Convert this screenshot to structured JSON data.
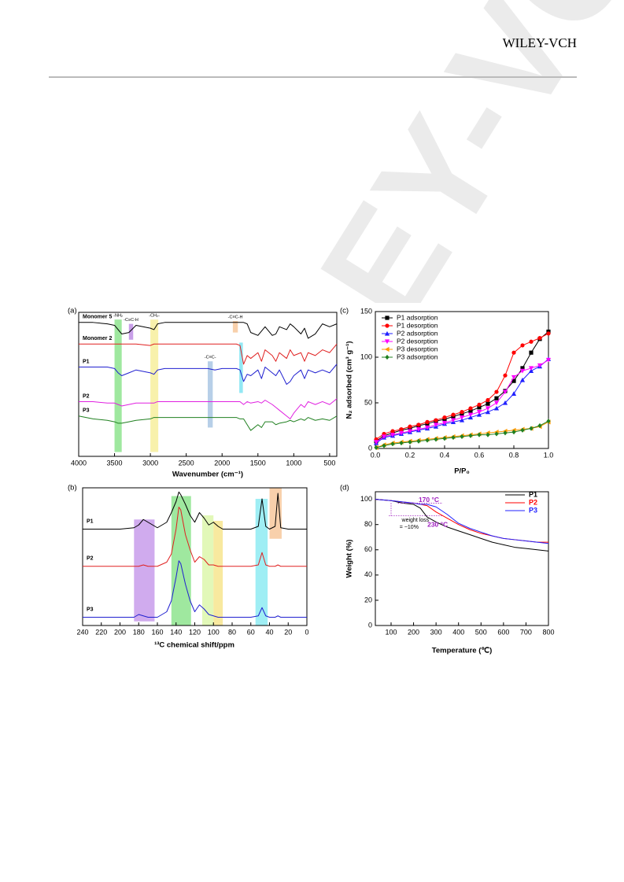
{
  "header": {
    "publisher": "WILEY-VCH"
  },
  "watermark": "WILEY-VCH",
  "chart_data": [
    {
      "type": "line",
      "panel": "(a)",
      "x_label": "Wavenumber (cm⁻¹)",
      "legend": "inline",
      "x": [
        4000,
        3800,
        3600,
        3500,
        3450,
        3400,
        3300,
        3200,
        3000,
        2950,
        2900,
        2800,
        2500,
        2200,
        2100,
        2000,
        1800,
        1750,
        1700,
        1650,
        1600,
        1500,
        1450,
        1400,
        1300,
        1250,
        1200,
        1100,
        1050,
        1000,
        900,
        850,
        800,
        700,
        600,
        500,
        400
      ],
      "xlim": [
        4000,
        400
      ],
      "ylim": [
        0,
        100
      ],
      "xticks": [
        4000,
        3500,
        3000,
        2500,
        2000,
        1500,
        1000,
        500
      ],
      "bands": [
        {
          "x0": 3500,
          "x1": 3400,
          "y0": 3,
          "y1": 95,
          "color": "#7fe07f",
          "label": "-NH₂"
        },
        {
          "x0": 3300,
          "x1": 3240,
          "y0": 81,
          "y1": 92,
          "color": "#b57fe0",
          "label": "-C≡C-H"
        },
        {
          "x0": 3000,
          "x1": 2890,
          "y0": 3,
          "y1": 95,
          "color": "#f5ec8f",
          "label": "-CH₂-"
        },
        {
          "x0": 1850,
          "x1": 1780,
          "y0": 86,
          "y1": 94,
          "color": "#f5c08f",
          "label": "-C≡C-H"
        },
        {
          "x0": 2200,
          "x1": 2130,
          "y0": 20,
          "y1": 66,
          "color": "#9fbfe0",
          "label": "-C≡C-"
        },
        {
          "x0": 1760,
          "x1": 1710,
          "y0": 44,
          "y1": 79,
          "color": "#6fe0f0"
        }
      ],
      "series": [
        {
          "name": "Monomer 5",
          "color": "#000000",
          "values": [
            93,
            93,
            92,
            91,
            88,
            85,
            86,
            91,
            89,
            88,
            92,
            93,
            93,
            93,
            93,
            93,
            93,
            93,
            93,
            92,
            86,
            84,
            87,
            90,
            84,
            85,
            90,
            88,
            92,
            90,
            85,
            89,
            82,
            85,
            92,
            90,
            92
          ]
        },
        {
          "name": "Monomer 2",
          "color": "#e02020",
          "values": [
            78,
            78,
            78,
            78,
            78,
            78,
            78,
            78,
            77,
            78,
            78,
            78,
            78,
            78,
            78,
            78,
            78,
            77,
            64,
            70,
            68,
            72,
            66,
            74,
            70,
            66,
            72,
            68,
            74,
            70,
            72,
            66,
            72,
            70,
            74,
            72,
            78
          ]
        },
        {
          "name": "P1",
          "color": "#2020d0",
          "values": [
            62,
            62,
            62,
            61,
            58,
            56,
            58,
            60,
            58,
            57,
            60,
            61,
            61,
            61,
            60,
            61,
            61,
            60,
            52,
            57,
            56,
            60,
            54,
            62,
            58,
            56,
            60,
            50,
            52,
            56,
            60,
            54,
            60,
            58,
            60,
            58,
            64
          ]
        },
        {
          "name": "P2",
          "color": "#e020e0",
          "values": [
            38,
            38,
            37,
            37,
            36,
            35,
            36,
            37,
            37,
            37,
            38,
            38,
            38,
            38,
            38,
            38,
            38,
            38,
            36,
            38,
            37,
            38,
            37,
            39,
            36,
            34,
            32,
            28,
            26,
            30,
            36,
            34,
            38,
            36,
            38,
            36,
            40
          ]
        },
        {
          "name": "P3",
          "color": "#208020",
          "values": [
            28,
            26,
            25,
            24,
            23,
            23,
            24,
            25,
            26,
            27,
            27,
            27,
            27,
            27,
            27,
            27,
            27,
            26,
            26,
            22,
            18,
            22,
            20,
            24,
            24,
            22,
            23,
            24,
            25,
            24,
            26,
            25,
            27,
            25,
            26,
            25,
            28
          ]
        }
      ]
    },
    {
      "type": "line",
      "panel": "(b)",
      "x_label": "¹³C chemical shift/ppm",
      "legend": "inline",
      "x": [
        240,
        220,
        200,
        185,
        180,
        175,
        170,
        160,
        150,
        145,
        140,
        137,
        135,
        130,
        125,
        120,
        115,
        110,
        105,
        100,
        95,
        90,
        80,
        60,
        52,
        48,
        44,
        40,
        34,
        31,
        28,
        20,
        0
      ],
      "xlim": [
        240,
        0
      ],
      "ylim": [
        0,
        100
      ],
      "xticks": [
        240,
        220,
        200,
        180,
        160,
        140,
        120,
        100,
        80,
        60,
        40,
        20,
        0
      ],
      "bands": [
        {
          "x0": 185,
          "x1": 163,
          "y0": 3,
          "y1": 77,
          "color": "#c08fe8"
        },
        {
          "x0": 145,
          "x1": 124,
          "y0": 0,
          "y1": 94,
          "color": "#7fe07f"
        },
        {
          "x0": 112,
          "x1": 100,
          "y0": 0,
          "y1": 80,
          "color": "#d8f5a0"
        },
        {
          "x0": 100,
          "x1": 90,
          "y0": 0,
          "y1": 76,
          "color": "#f5e27f"
        },
        {
          "x0": 55,
          "x1": 42,
          "y0": 0,
          "y1": 92,
          "color": "#7fe8f0"
        },
        {
          "x0": 40,
          "x1": 27,
          "y0": 63,
          "y1": 100,
          "color": "#f5c08f"
        }
      ],
      "series": [
        {
          "name": "P1",
          "color": "#000000",
          "values": [
            70,
            70,
            70,
            71,
            73,
            77,
            75,
            71,
            75,
            82,
            90,
            97,
            95,
            88,
            80,
            75,
            82,
            78,
            73,
            75,
            72,
            70,
            70,
            70,
            72,
            92,
            72,
            70,
            72,
            96,
            71,
            70,
            70
          ]
        },
        {
          "name": "P2",
          "color": "#e02020",
          "values": [
            43,
            43,
            43,
            43,
            43,
            44,
            43,
            43,
            46,
            52,
            70,
            86,
            84,
            66,
            55,
            46,
            50,
            48,
            44,
            44,
            43,
            43,
            43,
            43,
            44,
            53,
            44,
            43,
            43,
            44,
            43,
            43,
            43
          ]
        },
        {
          "name": "P3",
          "color": "#2020d0",
          "values": [
            6,
            6,
            6,
            6,
            8,
            7,
            6,
            6,
            10,
            18,
            35,
            47,
            45,
            30,
            18,
            10,
            15,
            12,
            8,
            7,
            6,
            6,
            6,
            6,
            7,
            13,
            7,
            6,
            6,
            7,
            6,
            6,
            6
          ]
        }
      ]
    },
    {
      "type": "line",
      "panel": "(c)",
      "x_label": "P/P₀",
      "y_label": "N₂ adsorbed (cm³ g⁻¹)",
      "legend": "upper left",
      "x": [
        0.005,
        0.05,
        0.1,
        0.15,
        0.2,
        0.25,
        0.3,
        0.35,
        0.4,
        0.45,
        0.5,
        0.55,
        0.6,
        0.65,
        0.7,
        0.75,
        0.8,
        0.85,
        0.9,
        0.95,
        1.0
      ],
      "xlim": [
        0,
        1
      ],
      "ylim": [
        0,
        150
      ],
      "xticks": [
        {
          "value": 0,
          "label": "0.0"
        },
        0.2,
        0.4,
        0.6,
        0.8,
        {
          "value": 1,
          "label": "1.0"
        }
      ],
      "yticks": [
        0,
        50,
        100,
        150
      ],
      "series": [
        {
          "name": "P1 adsorption",
          "color": "#000000",
          "marker": "square",
          "values": [
            8,
            14,
            17,
            20,
            22,
            25,
            27,
            30,
            32,
            35,
            38,
            41,
            45,
            49,
            55,
            63,
            74,
            88,
            105,
            120,
            128
          ]
        },
        {
          "name": "P1 desorption",
          "color": "#ff0000",
          "marker": "circle",
          "values": [
            10,
            16,
            19,
            21,
            24,
            26,
            29,
            31,
            34,
            37,
            40,
            44,
            48,
            53,
            62,
            80,
            105,
            113,
            117,
            121,
            126
          ]
        },
        {
          "name": "P2 adsorption",
          "color": "#2020ff",
          "marker": "triangle-up",
          "values": [
            6,
            12,
            14,
            16,
            18,
            20,
            22,
            24,
            27,
            29,
            31,
            34,
            37,
            40,
            44,
            50,
            60,
            75,
            85,
            90,
            98
          ]
        },
        {
          "name": "P2 desorption",
          "color": "#ff00ff",
          "marker": "triangle-down",
          "values": [
            7,
            13,
            15,
            17,
            19,
            21,
            23,
            26,
            28,
            31,
            34,
            37,
            40,
            44,
            50,
            62,
            78,
            85,
            88,
            91,
            97
          ]
        },
        {
          "name": "P3 desorption",
          "color": "#ff9900",
          "marker": "triangle-left",
          "values": [
            1,
            4,
            6,
            7,
            8,
            9,
            10,
            11,
            12,
            13,
            14,
            15,
            16,
            17,
            18,
            19,
            20,
            21,
            22,
            24,
            29
          ]
        },
        {
          "name": "P3 adsorption",
          "color": "#208020",
          "marker": "diamond",
          "values": [
            1,
            3,
            5,
            6,
            7,
            8,
            9,
            10,
            11,
            12,
            13,
            14,
            15,
            15,
            16,
            17,
            18,
            20,
            22,
            25,
            30
          ]
        }
      ]
    },
    {
      "type": "line",
      "panel": "(d)",
      "x_label": "Temperature (℃)",
      "y_label": "Weight (%)",
      "legend": "upper right",
      "x": [
        30,
        100,
        150,
        200,
        230,
        260,
        300,
        350,
        400,
        450,
        500,
        550,
        600,
        650,
        700,
        750,
        800
      ],
      "xlim": [
        30,
        800
      ],
      "ylim": [
        0,
        106
      ],
      "xticks": [
        100,
        200,
        300,
        400,
        500,
        600,
        700,
        800
      ],
      "yticks": [
        0,
        20,
        40,
        60,
        80,
        100
      ],
      "annotations": [
        "170 °C",
        "weight loss",
        "= ~10%",
        "230 °C"
      ],
      "series": [
        {
          "name": "P1",
          "color": "#000000",
          "values": [
            100,
            99,
            97,
            96,
            93,
            86,
            82,
            78,
            75,
            72,
            69,
            66,
            64,
            62,
            61,
            60,
            59
          ]
        },
        {
          "name": "P2",
          "color": "#ff0000",
          "values": [
            100,
            99,
            98,
            97,
            96,
            95,
            90,
            85,
            80,
            76,
            73,
            71,
            69,
            68,
            67,
            66,
            66
          ]
        },
        {
          "name": "P3",
          "color": "#2020ff",
          "values": [
            100,
            99,
            98,
            97,
            96,
            96,
            94,
            88,
            81,
            77,
            74,
            71,
            69,
            68,
            67,
            66,
            65
          ]
        }
      ]
    }
  ]
}
